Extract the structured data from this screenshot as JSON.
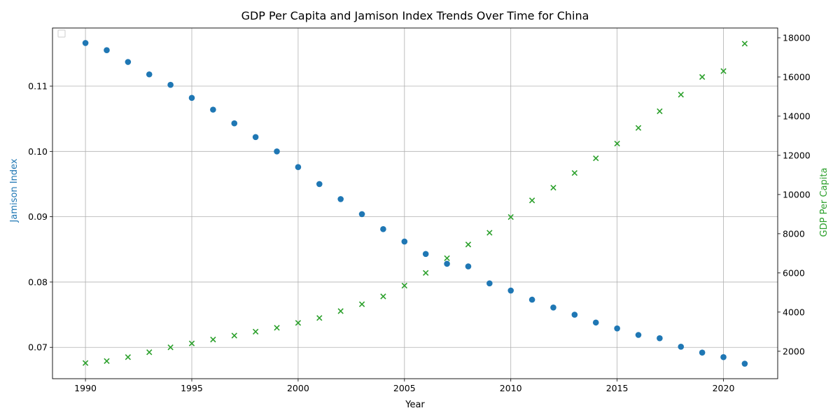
{
  "chart_data": {
    "type": "scatter",
    "title": "GDP Per Capita and Jamison Index Trends Over Time for China",
    "xlabel": "Year",
    "ylabel_left": "Jamison Index",
    "ylabel_right": "GDP Per Capita",
    "x": [
      1990,
      1991,
      1992,
      1993,
      1994,
      1995,
      1996,
      1997,
      1998,
      1999,
      2000,
      2001,
      2002,
      2003,
      2004,
      2005,
      2006,
      2007,
      2008,
      2009,
      2010,
      2011,
      2012,
      2013,
      2014,
      2015,
      2016,
      2017,
      2018,
      2019,
      2020,
      2021
    ],
    "series": [
      {
        "name": "Jamison Index",
        "axis": "left",
        "marker": "circle",
        "color": "#1f77b4",
        "values": [
          0.1166,
          0.1155,
          0.1137,
          0.1118,
          0.1102,
          0.1082,
          0.1064,
          0.1043,
          0.1022,
          0.1,
          0.0976,
          0.095,
          0.0927,
          0.0904,
          0.0881,
          0.0862,
          0.0843,
          0.0828,
          0.0824,
          0.0798,
          0.0787,
          0.0773,
          0.0761,
          0.075,
          0.0738,
          0.0729,
          0.0719,
          0.0714,
          0.0701,
          0.0692,
          0.0685,
          0.0675
        ]
      },
      {
        "name": "GDP Per Capita",
        "axis": "right",
        "marker": "x",
        "color": "#2ca02c",
        "values": [
          1400,
          1500,
          1700,
          1950,
          2200,
          2400,
          2600,
          2800,
          3000,
          3200,
          3450,
          3700,
          4050,
          4400,
          4800,
          5350,
          6000,
          6750,
          7450,
          8050,
          8850,
          9700,
          10350,
          11100,
          11850,
          12600,
          13400,
          14250,
          15100,
          16000,
          16300,
          17700
        ]
      }
    ],
    "xlim": [
      1988.45,
      2022.55
    ],
    "ylim_left": [
      0.0652,
      0.1189
    ],
    "ylim_right": [
      600,
      18500
    ],
    "xticks": [
      1990,
      1995,
      2000,
      2005,
      2010,
      2015,
      2020
    ],
    "yticks_left": [
      "0.07",
      "0.08",
      "0.09",
      "0.10",
      "0.11"
    ],
    "yticks_right": [
      "2000",
      "4000",
      "6000",
      "8000",
      "10000",
      "12000",
      "14000",
      "16000",
      "18000"
    ],
    "grid": true,
    "legend_placement": "upper-left"
  }
}
